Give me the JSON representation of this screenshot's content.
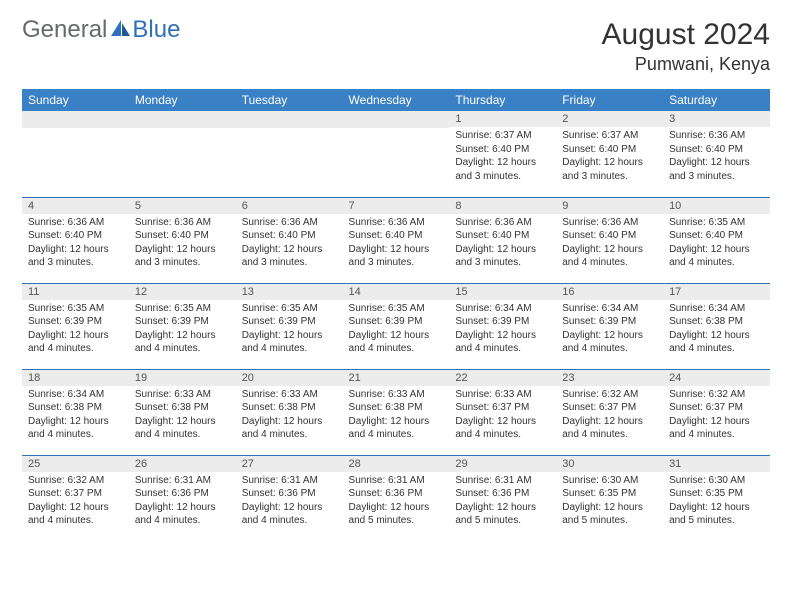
{
  "logo": {
    "part1": "General",
    "part2": "Blue"
  },
  "title": "August 2024",
  "location": "Pumwani, Kenya",
  "colors": {
    "header_bg": "#3a80c4",
    "header_text": "#ffffff",
    "row_divider": "#2f71b8",
    "daynum_bg": "#ececec",
    "logo_gray": "#666a6d",
    "logo_blue": "#2f71b8"
  },
  "dayHeaders": [
    "Sunday",
    "Monday",
    "Tuesday",
    "Wednesday",
    "Thursday",
    "Friday",
    "Saturday"
  ],
  "weeks": [
    [
      {
        "n": "",
        "lines": []
      },
      {
        "n": "",
        "lines": []
      },
      {
        "n": "",
        "lines": []
      },
      {
        "n": "",
        "lines": []
      },
      {
        "n": "1",
        "lines": [
          "Sunrise: 6:37 AM",
          "Sunset: 6:40 PM",
          "Daylight: 12 hours and 3 minutes."
        ]
      },
      {
        "n": "2",
        "lines": [
          "Sunrise: 6:37 AM",
          "Sunset: 6:40 PM",
          "Daylight: 12 hours and 3 minutes."
        ]
      },
      {
        "n": "3",
        "lines": [
          "Sunrise: 6:36 AM",
          "Sunset: 6:40 PM",
          "Daylight: 12 hours and 3 minutes."
        ]
      }
    ],
    [
      {
        "n": "4",
        "lines": [
          "Sunrise: 6:36 AM",
          "Sunset: 6:40 PM",
          "Daylight: 12 hours and 3 minutes."
        ]
      },
      {
        "n": "5",
        "lines": [
          "Sunrise: 6:36 AM",
          "Sunset: 6:40 PM",
          "Daylight: 12 hours and 3 minutes."
        ]
      },
      {
        "n": "6",
        "lines": [
          "Sunrise: 6:36 AM",
          "Sunset: 6:40 PM",
          "Daylight: 12 hours and 3 minutes."
        ]
      },
      {
        "n": "7",
        "lines": [
          "Sunrise: 6:36 AM",
          "Sunset: 6:40 PM",
          "Daylight: 12 hours and 3 minutes."
        ]
      },
      {
        "n": "8",
        "lines": [
          "Sunrise: 6:36 AM",
          "Sunset: 6:40 PM",
          "Daylight: 12 hours and 3 minutes."
        ]
      },
      {
        "n": "9",
        "lines": [
          "Sunrise: 6:36 AM",
          "Sunset: 6:40 PM",
          "Daylight: 12 hours and 4 minutes."
        ]
      },
      {
        "n": "10",
        "lines": [
          "Sunrise: 6:35 AM",
          "Sunset: 6:40 PM",
          "Daylight: 12 hours and 4 minutes."
        ]
      }
    ],
    [
      {
        "n": "11",
        "lines": [
          "Sunrise: 6:35 AM",
          "Sunset: 6:39 PM",
          "Daylight: 12 hours and 4 minutes."
        ]
      },
      {
        "n": "12",
        "lines": [
          "Sunrise: 6:35 AM",
          "Sunset: 6:39 PM",
          "Daylight: 12 hours and 4 minutes."
        ]
      },
      {
        "n": "13",
        "lines": [
          "Sunrise: 6:35 AM",
          "Sunset: 6:39 PM",
          "Daylight: 12 hours and 4 minutes."
        ]
      },
      {
        "n": "14",
        "lines": [
          "Sunrise: 6:35 AM",
          "Sunset: 6:39 PM",
          "Daylight: 12 hours and 4 minutes."
        ]
      },
      {
        "n": "15",
        "lines": [
          "Sunrise: 6:34 AM",
          "Sunset: 6:39 PM",
          "Daylight: 12 hours and 4 minutes."
        ]
      },
      {
        "n": "16",
        "lines": [
          "Sunrise: 6:34 AM",
          "Sunset: 6:39 PM",
          "Daylight: 12 hours and 4 minutes."
        ]
      },
      {
        "n": "17",
        "lines": [
          "Sunrise: 6:34 AM",
          "Sunset: 6:38 PM",
          "Daylight: 12 hours and 4 minutes."
        ]
      }
    ],
    [
      {
        "n": "18",
        "lines": [
          "Sunrise: 6:34 AM",
          "Sunset: 6:38 PM",
          "Daylight: 12 hours and 4 minutes."
        ]
      },
      {
        "n": "19",
        "lines": [
          "Sunrise: 6:33 AM",
          "Sunset: 6:38 PM",
          "Daylight: 12 hours and 4 minutes."
        ]
      },
      {
        "n": "20",
        "lines": [
          "Sunrise: 6:33 AM",
          "Sunset: 6:38 PM",
          "Daylight: 12 hours and 4 minutes."
        ]
      },
      {
        "n": "21",
        "lines": [
          "Sunrise: 6:33 AM",
          "Sunset: 6:38 PM",
          "Daylight: 12 hours and 4 minutes."
        ]
      },
      {
        "n": "22",
        "lines": [
          "Sunrise: 6:33 AM",
          "Sunset: 6:37 PM",
          "Daylight: 12 hours and 4 minutes."
        ]
      },
      {
        "n": "23",
        "lines": [
          "Sunrise: 6:32 AM",
          "Sunset: 6:37 PM",
          "Daylight: 12 hours and 4 minutes."
        ]
      },
      {
        "n": "24",
        "lines": [
          "Sunrise: 6:32 AM",
          "Sunset: 6:37 PM",
          "Daylight: 12 hours and 4 minutes."
        ]
      }
    ],
    [
      {
        "n": "25",
        "lines": [
          "Sunrise: 6:32 AM",
          "Sunset: 6:37 PM",
          "Daylight: 12 hours and 4 minutes."
        ]
      },
      {
        "n": "26",
        "lines": [
          "Sunrise: 6:31 AM",
          "Sunset: 6:36 PM",
          "Daylight: 12 hours and 4 minutes."
        ]
      },
      {
        "n": "27",
        "lines": [
          "Sunrise: 6:31 AM",
          "Sunset: 6:36 PM",
          "Daylight: 12 hours and 4 minutes."
        ]
      },
      {
        "n": "28",
        "lines": [
          "Sunrise: 6:31 AM",
          "Sunset: 6:36 PM",
          "Daylight: 12 hours and 5 minutes."
        ]
      },
      {
        "n": "29",
        "lines": [
          "Sunrise: 6:31 AM",
          "Sunset: 6:36 PM",
          "Daylight: 12 hours and 5 minutes."
        ]
      },
      {
        "n": "30",
        "lines": [
          "Sunrise: 6:30 AM",
          "Sunset: 6:35 PM",
          "Daylight: 12 hours and 5 minutes."
        ]
      },
      {
        "n": "31",
        "lines": [
          "Sunrise: 6:30 AM",
          "Sunset: 6:35 PM",
          "Daylight: 12 hours and 5 minutes."
        ]
      }
    ]
  ]
}
